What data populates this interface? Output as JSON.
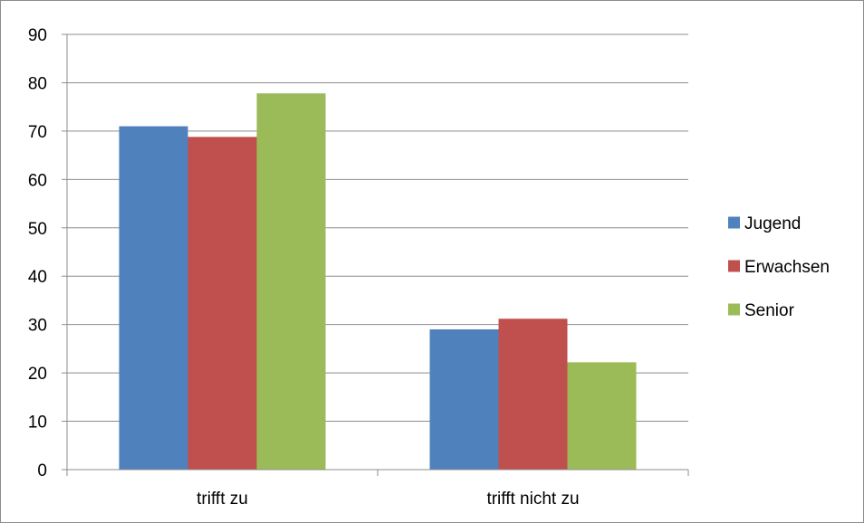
{
  "chart_data": {
    "type": "bar",
    "categories": [
      "trifft zu",
      "trifft nicht zu"
    ],
    "series": [
      {
        "name": "Jugend",
        "values": [
          71,
          29
        ],
        "color": "#4f81bd"
      },
      {
        "name": "Erwachsen",
        "values": [
          68.8,
          31.2
        ],
        "color": "#c0504d"
      },
      {
        "name": "Senior",
        "values": [
          77.8,
          22.2
        ],
        "color": "#9bbb59"
      }
    ],
    "ylim": [
      0,
      90
    ],
    "yticks": [
      "0",
      "10",
      "20",
      "30",
      "40",
      "50",
      "60",
      "70",
      "80",
      "90"
    ],
    "grid": true,
    "legend_position": "right",
    "title": "",
    "xlabel": "",
    "ylabel": ""
  },
  "colors": {
    "grid": "#8c8c8c",
    "axis": "#8c8c8c"
  }
}
